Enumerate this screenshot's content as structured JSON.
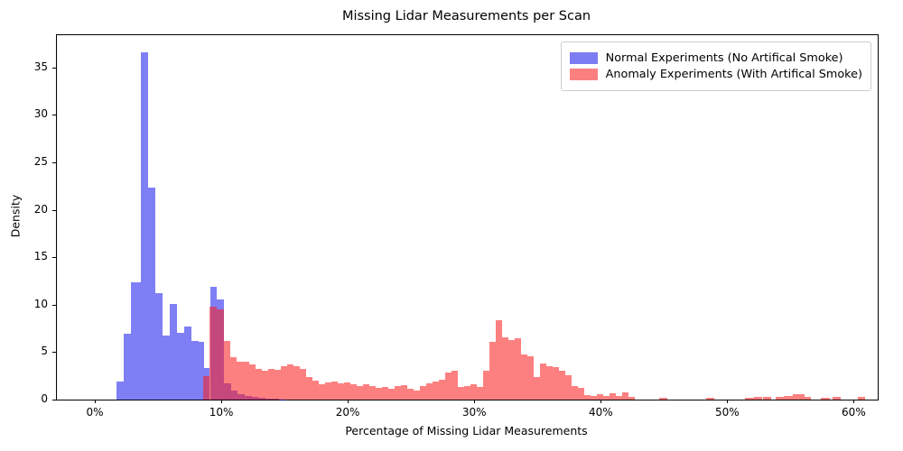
{
  "chart_data": {
    "type": "bar",
    "subtype": "overlaid-histogram",
    "title": "Missing Lidar Measurements per Scan",
    "xlabel": "Percentage of Missing Lidar Measurements",
    "ylabel": "Density",
    "xlim_pct": [
      -3.0,
      61.9
    ],
    "ylim": [
      0,
      38.4
    ],
    "grid": false,
    "legend_position": "upper-right",
    "x_ticks": [
      {
        "value": 0,
        "label": "0%"
      },
      {
        "value": 10,
        "label": "10%"
      },
      {
        "value": 20,
        "label": "20%"
      },
      {
        "value": 30,
        "label": "30%"
      },
      {
        "value": 40,
        "label": "40%"
      },
      {
        "value": 50,
        "label": "50%"
      },
      {
        "value": 60,
        "label": "60%"
      }
    ],
    "y_ticks": [
      {
        "value": 0,
        "label": "0"
      },
      {
        "value": 5,
        "label": "5"
      },
      {
        "value": 10,
        "label": "10"
      },
      {
        "value": 15,
        "label": "15"
      },
      {
        "value": 20,
        "label": "20"
      },
      {
        "value": 25,
        "label": "25"
      },
      {
        "value": 30,
        "label": "30"
      },
      {
        "value": 35,
        "label": "35"
      }
    ],
    "series": [
      {
        "name": "Normal Experiments (No Artifical Smoke)",
        "class": "blue",
        "swatch_color": "#7d7df3",
        "fill_rgba": "rgba(10,10,235,0.52)",
        "bins": [
          [
            1.71,
            2.3,
            1.9
          ],
          [
            2.3,
            2.88,
            6.9
          ],
          [
            2.88,
            3.62,
            12.4
          ],
          [
            3.62,
            4.21,
            36.6
          ],
          [
            4.21,
            4.79,
            22.3
          ],
          [
            4.79,
            5.36,
            11.2
          ],
          [
            5.36,
            5.93,
            6.8
          ],
          [
            5.93,
            6.5,
            10.1
          ],
          [
            6.5,
            7.07,
            7.0
          ],
          [
            7.07,
            7.64,
            7.7
          ],
          [
            7.64,
            8.21,
            6.2
          ],
          [
            8.21,
            8.64,
            6.1
          ],
          [
            8.64,
            9.1,
            3.3
          ],
          [
            9.1,
            9.64,
            11.9
          ],
          [
            9.64,
            10.21,
            10.6
          ],
          [
            10.21,
            10.75,
            1.7
          ],
          [
            10.75,
            11.3,
            0.95
          ],
          [
            11.3,
            11.85,
            0.6
          ],
          [
            11.85,
            12.4,
            0.38
          ],
          [
            12.4,
            12.95,
            0.25
          ],
          [
            12.95,
            13.5,
            0.18
          ],
          [
            13.5,
            14.05,
            0.12
          ],
          [
            14.05,
            14.6,
            0.08
          ],
          [
            14.6,
            15.15,
            0.05
          ]
        ]
      },
      {
        "name": "Anomaly Experiments (With Artifical Smoke)",
        "class": "red",
        "swatch_color": "#fb8181",
        "fill_rgba": "rgba(252,28,28,0.56)",
        "bins": [
          [
            8.53,
            9.07,
            2.5
          ],
          [
            9.07,
            9.64,
            9.8
          ],
          [
            9.64,
            10.21,
            9.5
          ],
          [
            10.21,
            10.71,
            6.2
          ],
          [
            10.71,
            11.21,
            4.5
          ],
          [
            11.21,
            11.71,
            4.0
          ],
          [
            11.71,
            12.21,
            4.0
          ],
          [
            12.21,
            12.71,
            3.7
          ],
          [
            12.71,
            13.21,
            3.2
          ],
          [
            13.21,
            13.71,
            3.0
          ],
          [
            13.71,
            14.21,
            3.2
          ],
          [
            14.21,
            14.71,
            3.1
          ],
          [
            14.71,
            15.21,
            3.5
          ],
          [
            15.21,
            15.71,
            3.7
          ],
          [
            15.71,
            16.21,
            3.5
          ],
          [
            16.21,
            16.71,
            3.2
          ],
          [
            16.71,
            17.21,
            2.4
          ],
          [
            17.21,
            17.71,
            2.0
          ],
          [
            17.71,
            18.21,
            1.6
          ],
          [
            18.21,
            18.71,
            1.8
          ],
          [
            18.71,
            19.21,
            1.9
          ],
          [
            19.21,
            19.71,
            1.75
          ],
          [
            19.71,
            20.21,
            1.8
          ],
          [
            20.21,
            20.71,
            1.6
          ],
          [
            20.71,
            21.21,
            1.4
          ],
          [
            21.21,
            21.71,
            1.65
          ],
          [
            21.71,
            22.21,
            1.4
          ],
          [
            22.21,
            22.71,
            1.2
          ],
          [
            22.71,
            23.21,
            1.35
          ],
          [
            23.21,
            23.71,
            1.1
          ],
          [
            23.71,
            24.21,
            1.4
          ],
          [
            24.21,
            24.71,
            1.5
          ],
          [
            24.71,
            25.21,
            1.1
          ],
          [
            25.21,
            25.71,
            0.95
          ],
          [
            25.71,
            26.21,
            1.4
          ],
          [
            26.21,
            26.71,
            1.7
          ],
          [
            26.71,
            27.21,
            1.9
          ],
          [
            27.21,
            27.71,
            2.1
          ],
          [
            27.71,
            28.21,
            2.85
          ],
          [
            28.21,
            28.71,
            3.05
          ],
          [
            28.71,
            29.21,
            1.3
          ],
          [
            29.21,
            29.71,
            1.45
          ],
          [
            29.71,
            30.21,
            1.6
          ],
          [
            30.21,
            30.71,
            1.3
          ],
          [
            30.71,
            31.21,
            3.0
          ],
          [
            31.21,
            31.71,
            6.1
          ],
          [
            31.71,
            32.21,
            8.4
          ],
          [
            32.21,
            32.71,
            6.6
          ],
          [
            32.71,
            33.21,
            6.3
          ],
          [
            33.21,
            33.71,
            6.5
          ],
          [
            33.71,
            34.21,
            4.8
          ],
          [
            34.21,
            34.71,
            4.6
          ],
          [
            34.71,
            35.21,
            2.4
          ],
          [
            35.21,
            35.71,
            3.8
          ],
          [
            35.71,
            36.21,
            3.5
          ],
          [
            36.21,
            36.71,
            3.4
          ],
          [
            36.71,
            37.21,
            3.0
          ],
          [
            37.21,
            37.71,
            2.6
          ],
          [
            37.71,
            38.21,
            1.4
          ],
          [
            38.21,
            38.71,
            1.2
          ],
          [
            38.71,
            39.21,
            0.5
          ],
          [
            39.21,
            39.71,
            0.4
          ],
          [
            39.71,
            40.21,
            0.6
          ],
          [
            40.21,
            40.71,
            0.4
          ],
          [
            40.71,
            41.21,
            0.7
          ],
          [
            41.21,
            41.71,
            0.35
          ],
          [
            41.71,
            42.21,
            0.8
          ],
          [
            42.21,
            42.71,
            0.3
          ],
          [
            44.6,
            45.3,
            0.18
          ],
          [
            48.3,
            49.0,
            0.22
          ],
          [
            51.4,
            52.1,
            0.2
          ],
          [
            52.1,
            52.8,
            0.3
          ],
          [
            52.8,
            53.5,
            0.25
          ],
          [
            53.8,
            54.5,
            0.3
          ],
          [
            54.5,
            55.2,
            0.4
          ],
          [
            55.2,
            56.1,
            0.62
          ],
          [
            56.1,
            56.6,
            0.3
          ],
          [
            57.4,
            58.1,
            0.2
          ],
          [
            58.3,
            59.0,
            0.32
          ],
          [
            60.3,
            60.9,
            0.33
          ]
        ]
      }
    ]
  },
  "legend": {
    "entries": [
      {
        "label": "Normal Experiments (No Artifical Smoke)"
      },
      {
        "label": "Anomaly Experiments (With Artifical Smoke)"
      }
    ]
  },
  "colors": {
    "normal_fill": "#7d7df3",
    "anomaly_fill": "#fb8181",
    "overlap": "#bf4080",
    "axis": "#000000",
    "legend_border": "#cccccc",
    "background": "#ffffff"
  }
}
